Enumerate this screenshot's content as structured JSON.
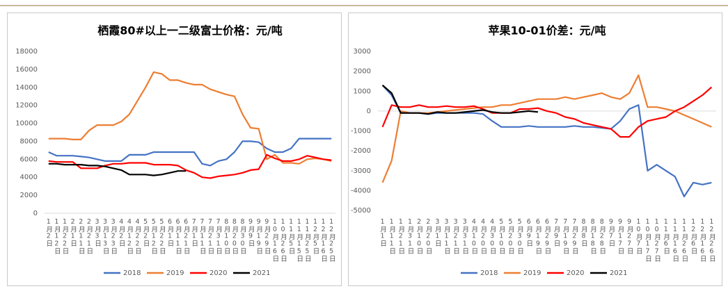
{
  "chart_data": [
    {
      "type": "line",
      "title": "栖霞80#以上一二级富士价格：元/吨",
      "categories": [
        "1月2日",
        "1月12日",
        "1月22日",
        "2月1日",
        "2月11日",
        "2月21日",
        "3月3日",
        "3月13日",
        "3月23日",
        "4月2日",
        "4月12日",
        "4月22日",
        "5月2日",
        "5月12日",
        "5月22日",
        "6月1日",
        "6月11日",
        "6月21日",
        "7月1日",
        "7月11日",
        "7月21日",
        "7月31日",
        "8月10日",
        "8月20日",
        "8月30日",
        "9月9日",
        "9月19日",
        "9月29日",
        "10月16日",
        "10月26日",
        "11月5日",
        "11月15日",
        "11月25日",
        "12月5日",
        "12月16日",
        "12月25日"
      ],
      "ylim": [
        0,
        18000
      ],
      "yticks": [
        0,
        2000,
        4000,
        6000,
        8000,
        10000,
        12000,
        14000,
        16000,
        18000
      ],
      "series": [
        {
          "name": "2018",
          "color": "#4472c4",
          "values": [
            6800,
            6400,
            6400,
            6400,
            6300,
            6200,
            6000,
            5800,
            5800,
            5800,
            6500,
            6500,
            6500,
            6800,
            6800,
            6800,
            6800,
            6800,
            6800,
            5500,
            5300,
            5800,
            6000,
            6800,
            8000,
            8000,
            7900,
            7200,
            6800,
            6800,
            7200,
            8300,
            8300,
            8300,
            8300,
            8300
          ]
        },
        {
          "name": "2019",
          "color": "#ed7d31",
          "values": [
            8300,
            8300,
            8300,
            8200,
            8200,
            9200,
            9800,
            9800,
            9800,
            10200,
            11000,
            12500,
            14000,
            15700,
            15500,
            14800,
            14800,
            14500,
            14300,
            14300,
            13800,
            13500,
            13200,
            13000,
            11000,
            9500,
            9400,
            6000,
            6500,
            5600,
            5600,
            5500,
            6000,
            6100,
            6000,
            5800
          ]
        },
        {
          "name": "2020",
          "color": "#ff0000",
          "values": [
            5800,
            5700,
            5700,
            5700,
            5000,
            5000,
            5000,
            5300,
            5500,
            5500,
            5600,
            5600,
            5600,
            5400,
            5400,
            5400,
            5300,
            4800,
            4500,
            4000,
            3900,
            4100,
            4200,
            4300,
            4500,
            4800,
            4900,
            6500,
            6100,
            5800,
            5800,
            6000,
            6400,
            6200,
            6000,
            5900
          ]
        },
        {
          "name": "2021",
          "color": "#000000",
          "values": [
            5500,
            5500,
            5400,
            5400,
            5400,
            5300,
            5300,
            5200,
            5000,
            4800,
            4300,
            4300,
            4300,
            4200,
            4300,
            4500,
            4700,
            4700,
            null,
            null,
            null,
            null,
            null,
            null,
            null,
            null,
            null,
            null,
            null,
            null,
            null,
            null,
            null,
            null,
            null,
            null
          ]
        }
      ]
    },
    {
      "type": "line",
      "title": "苹果10-01价差：元/吨",
      "categories": [
        "1月1日",
        "1月11日",
        "1月21日",
        "1月31日",
        "2月10日",
        "2月20日",
        "3月1日",
        "3月11日",
        "3月21日",
        "3月31日",
        "4月10日",
        "4月20日",
        "4月30日",
        "5月10日",
        "5月20日",
        "5月30日",
        "6月9日",
        "6月19日",
        "6月29日",
        "7月9日",
        "7月19日",
        "7月29日",
        "8月8日",
        "8月18日",
        "8月28日",
        "9月7日",
        "9月17日",
        "9月27日",
        "10月7日",
        "10月17日",
        "10月27日",
        "11月6日",
        "11月16日",
        "11月26日",
        "12月6日",
        "12月16日",
        "12月26日"
      ],
      "ylim": [
        -5000,
        3000
      ],
      "yticks": [
        -5000,
        -4000,
        -3000,
        -2000,
        -1000,
        0,
        1000,
        2000,
        3000
      ],
      "series": [
        {
          "name": "2018",
          "color": "#4472c4",
          "values": [
            1300,
            800,
            -100,
            -100,
            -100,
            -150,
            -100,
            -100,
            -100,
            -100,
            -100,
            -150,
            -500,
            -800,
            -800,
            -800,
            -750,
            -800,
            -800,
            -800,
            -800,
            -750,
            -800,
            -800,
            -850,
            -900,
            -500,
            100,
            300,
            -3000,
            -2700,
            -3000,
            -3300,
            -4300,
            -3600,
            -3700,
            -3600
          ]
        },
        {
          "name": "2019",
          "color": "#ed7d31",
          "values": [
            -3600,
            -2500,
            0,
            -100,
            -100,
            -100,
            -50,
            0,
            50,
            100,
            150,
            200,
            200,
            300,
            300,
            400,
            500,
            600,
            600,
            600,
            700,
            600,
            700,
            800,
            900,
            700,
            600,
            900,
            1800,
            200,
            200,
            100,
            0,
            -200,
            -400,
            -600,
            -800
          ]
        },
        {
          "name": "2020",
          "color": "#ff0000",
          "values": [
            -800,
            300,
            200,
            200,
            300,
            200,
            200,
            250,
            200,
            200,
            250,
            100,
            -100,
            -100,
            -100,
            100,
            100,
            150,
            0,
            -100,
            -300,
            -400,
            -600,
            -700,
            -800,
            -900,
            -1300,
            -1300,
            -800,
            -500,
            -400,
            -300,
            0,
            200,
            500,
            800,
            1200
          ]
        },
        {
          "name": "2021",
          "color": "#000000",
          "values": [
            1300,
            900,
            -100,
            -100,
            -100,
            -150,
            -50,
            -100,
            -100,
            -50,
            0,
            50,
            -50,
            -100,
            -100,
            -50,
            0,
            -50,
            null,
            null,
            null,
            null,
            null,
            null,
            null,
            null,
            null,
            null,
            null,
            null,
            null,
            null,
            null,
            null,
            null,
            null,
            null
          ]
        }
      ]
    }
  ]
}
